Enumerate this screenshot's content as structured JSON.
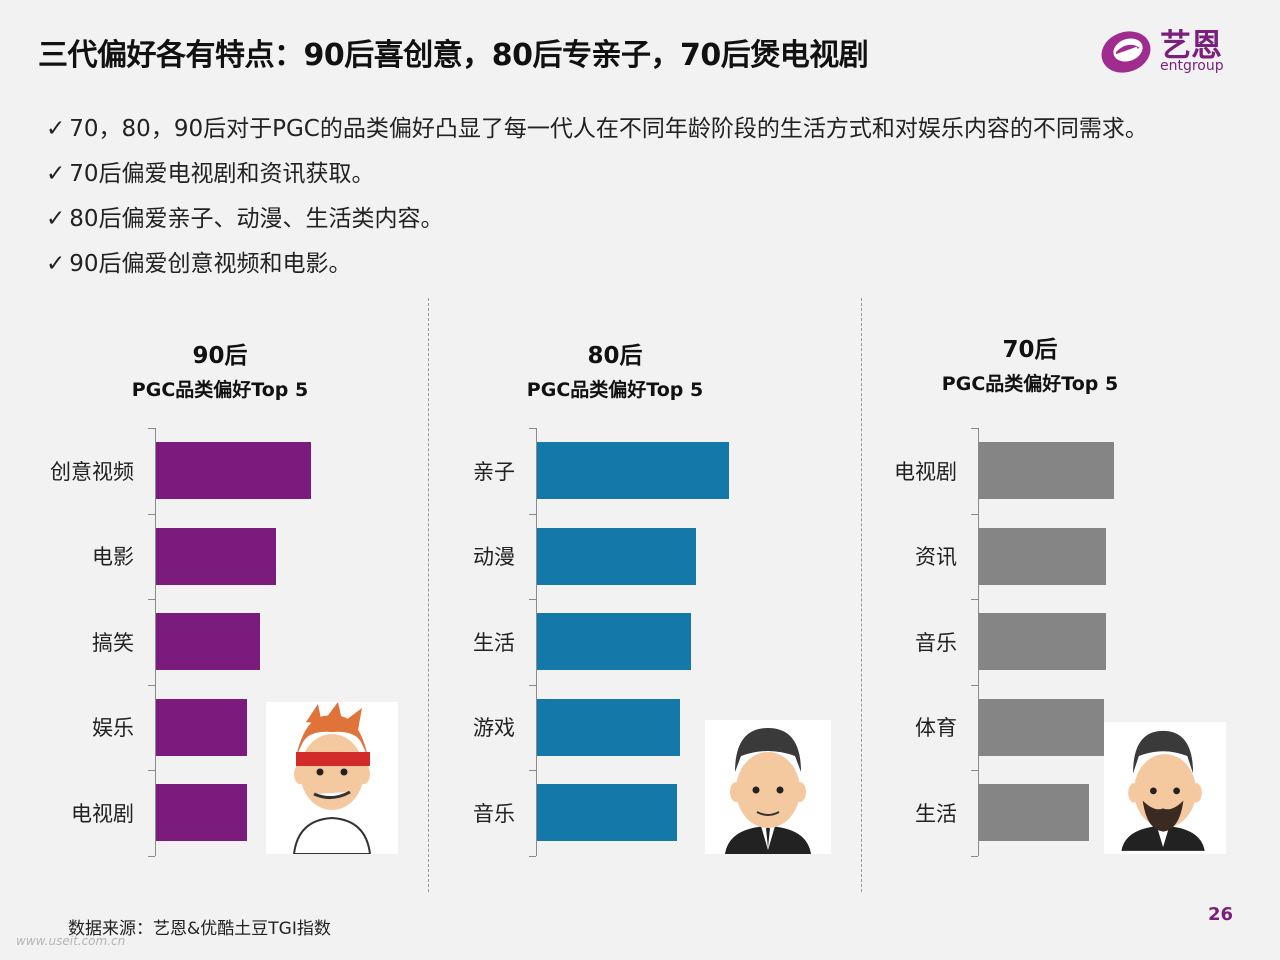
{
  "header": {
    "title": "三代偏好各有特点：90后喜创意，80后专亲子，70后煲电视剧"
  },
  "logo": {
    "cn": "艺恩",
    "en": "entgroup",
    "color": "#7a1f7b"
  },
  "bullets": [
    "70，80，90后对于PGC的品类偏好凸显了每一代人在不同年龄阶段的生活方式和对娱乐内容的不同需求。",
    "70后偏爱电视剧和资讯获取。",
    "80后偏爱亲子、动漫、生活类内容。",
    "90后偏爱创意视频和电影。"
  ],
  "check_symbol": "✓",
  "chart_data": [
    {
      "type": "bar",
      "orientation": "horizontal",
      "title": "90后",
      "subtitle": "PGC品类偏好Top 5",
      "categories": [
        "创意视频",
        "电影",
        "搞笑",
        "娱乐",
        "电视剧"
      ],
      "values": [
        155,
        120,
        104,
        91,
        91
      ],
      "color": "#7b1b7e",
      "avatar": "young-man-headband-icon"
    },
    {
      "type": "bar",
      "orientation": "horizontal",
      "title": "80后",
      "subtitle": "PGC品类偏好Top 5",
      "categories": [
        "亲子",
        "动漫",
        "生活",
        "游戏",
        "音乐"
      ],
      "values": [
        192,
        159,
        154,
        143,
        140
      ],
      "color": "#1479a8",
      "avatar": "man-suit-icon"
    },
    {
      "type": "bar",
      "orientation": "horizontal",
      "title": "70后",
      "subtitle": "PGC品类偏好Top 5",
      "categories": [
        "电视剧",
        "资讯",
        "音乐",
        "体育",
        "生活"
      ],
      "values": [
        135,
        127,
        127,
        125,
        110
      ],
      "color": "#858585",
      "avatar": "bearded-man-suit-icon"
    }
  ],
  "footer": {
    "source": "数据来源：艺恩&优酷土豆TGI指数",
    "page": "26",
    "watermark": "www.useit.com.cn"
  }
}
